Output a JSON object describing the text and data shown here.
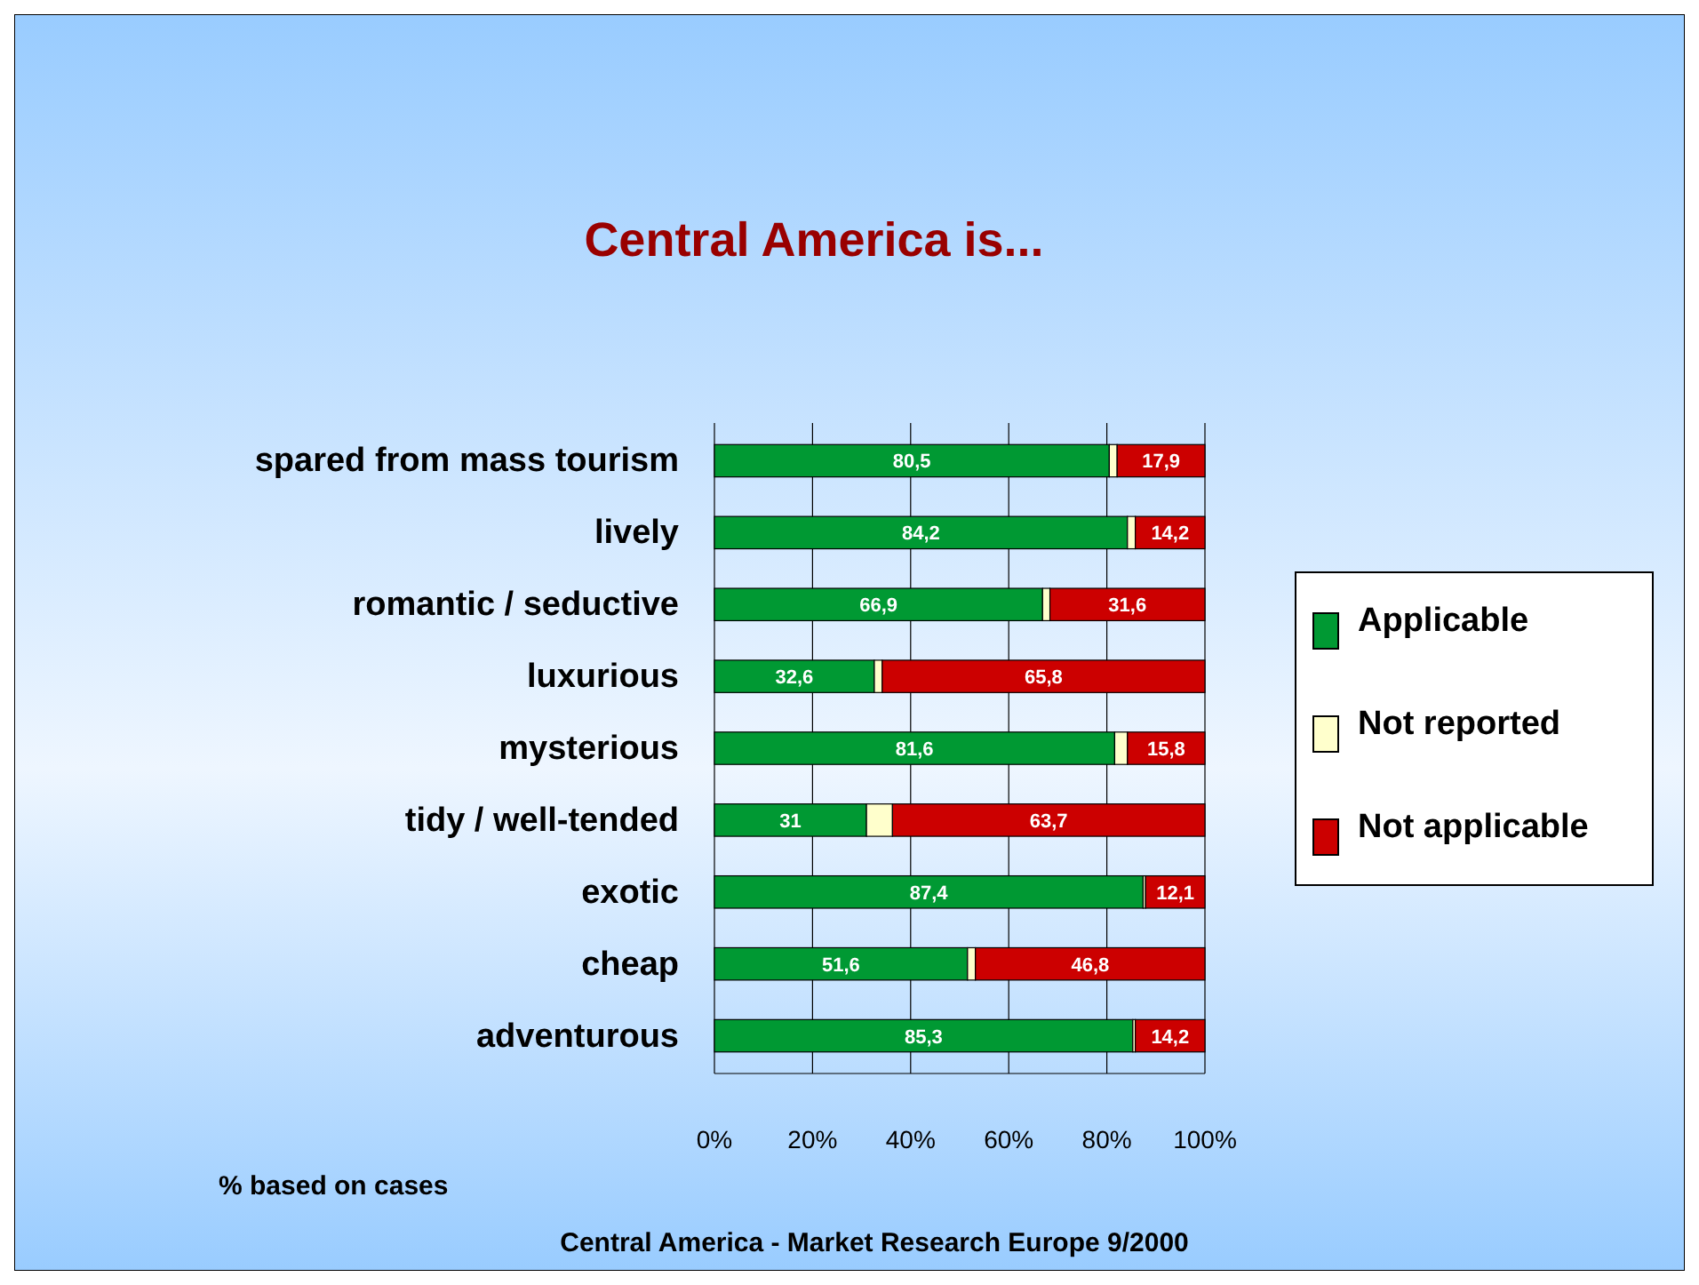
{
  "chart_data": {
    "type": "bar",
    "orientation": "horizontal",
    "stacked": true,
    "title": "Central America is...",
    "categories": [
      "spared from mass tourism",
      "lively",
      "romantic / seductive",
      "luxurious",
      "mysterious",
      "tidy / well-tended",
      "exotic",
      "cheap",
      "adventurous"
    ],
    "series": [
      {
        "name": "Applicable",
        "color": "#009933",
        "values": [
          80.5,
          84.2,
          66.9,
          32.6,
          81.6,
          31,
          87.4,
          51.6,
          85.3
        ],
        "value_labels": [
          "80,5",
          "84,2",
          "66,9",
          "32,6",
          "81,6",
          "31",
          "87,4",
          "51,6",
          "85,3"
        ]
      },
      {
        "name": "Not reported",
        "color": "#ffffcc",
        "values": [
          1.6,
          1.6,
          1.5,
          1.6,
          2.6,
          5.3,
          0.5,
          1.6,
          0.5
        ]
      },
      {
        "name": "Not applicable",
        "color": "#cc0000",
        "values": [
          17.9,
          14.2,
          31.6,
          65.8,
          15.8,
          63.7,
          12.1,
          46.8,
          14.2
        ],
        "value_labels": [
          "17,9",
          "14,2",
          "31,6",
          "65,8",
          "15,8",
          "63,7",
          "12,1",
          "46,8",
          "14,2"
        ]
      }
    ],
    "xlim": [
      0,
      100
    ],
    "xticks": [
      {
        "value": 0,
        "label": "0%"
      },
      {
        "value": 20,
        "label": "20%"
      },
      {
        "value": 40,
        "label": "40%"
      },
      {
        "value": 60,
        "label": "60%"
      },
      {
        "value": 80,
        "label": "80%"
      },
      {
        "value": 100,
        "label": "100%"
      }
    ],
    "grid": "x",
    "legend": "right",
    "annotations": [
      "% based on cases",
      "Central America - Market Research Europe 9/2000"
    ]
  }
}
